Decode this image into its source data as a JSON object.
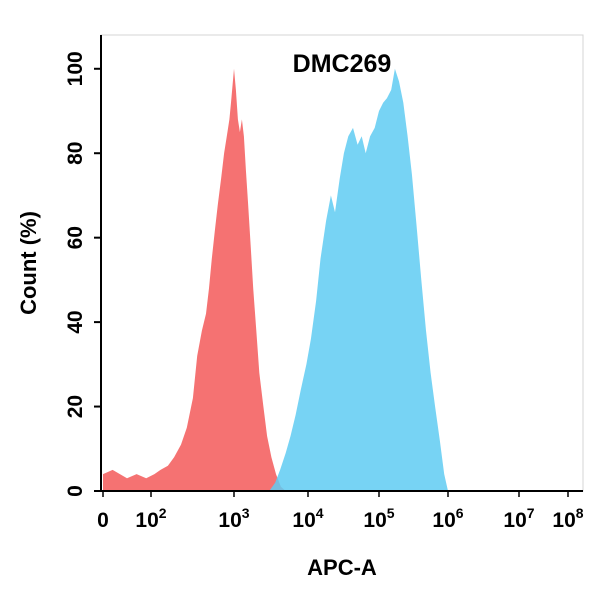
{
  "chart_data": {
    "type": "area",
    "title": "DMC269",
    "xlabel": "APC-A",
    "ylabel": "Count  (%)",
    "x_scale": "biexponential",
    "xlim": [
      0,
      100000000
    ],
    "ylim": [
      0,
      108
    ],
    "x_ticks": [
      {
        "value": 0,
        "base": "0",
        "exp": ""
      },
      {
        "value": 100,
        "base": "10",
        "exp": "2"
      },
      {
        "value": 1000,
        "base": "10",
        "exp": "3"
      },
      {
        "value": 10000,
        "base": "10",
        "exp": "4"
      },
      {
        "value": 100000,
        "base": "10",
        "exp": "5"
      },
      {
        "value": 1000000,
        "base": "10",
        "exp": "6"
      },
      {
        "value": 10000000,
        "base": "10",
        "exp": "7"
      },
      {
        "value": 100000000,
        "base": "10",
        "exp": "8"
      }
    ],
    "y_ticks": [
      0,
      20,
      40,
      60,
      80,
      100
    ],
    "grid": false,
    "series": [
      {
        "color": "#f46a6a",
        "points": [
          [
            0,
            4
          ],
          [
            20,
            5
          ],
          [
            50,
            3
          ],
          [
            70,
            4
          ],
          [
            90,
            3
          ],
          [
            110,
            4
          ],
          [
            130,
            5
          ],
          [
            160,
            6
          ],
          [
            190,
            8
          ],
          [
            230,
            11
          ],
          [
            270,
            15
          ],
          [
            320,
            22
          ],
          [
            360,
            32
          ],
          [
            410,
            38
          ],
          [
            460,
            42
          ],
          [
            500,
            48
          ],
          [
            540,
            55
          ],
          [
            590,
            62
          ],
          [
            640,
            68
          ],
          [
            700,
            74
          ],
          [
            760,
            80
          ],
          [
            820,
            84
          ],
          [
            880,
            88
          ],
          [
            920,
            92
          ],
          [
            960,
            96
          ],
          [
            1000,
            100
          ],
          [
            1060,
            95
          ],
          [
            1130,
            88
          ],
          [
            1200,
            85
          ],
          [
            1280,
            88
          ],
          [
            1360,
            84
          ],
          [
            1450,
            76
          ],
          [
            1550,
            68
          ],
          [
            1680,
            58
          ],
          [
            1820,
            48
          ],
          [
            2000,
            38
          ],
          [
            2200,
            28
          ],
          [
            2500,
            20
          ],
          [
            2800,
            13
          ],
          [
            3200,
            8
          ],
          [
            3700,
            4
          ],
          [
            4300,
            1
          ],
          [
            5000,
            0
          ]
        ]
      },
      {
        "color": "#5fcbf2",
        "points": [
          [
            3000,
            0
          ],
          [
            3600,
            2
          ],
          [
            4200,
            5
          ],
          [
            5000,
            9
          ],
          [
            5800,
            13
          ],
          [
            6800,
            18
          ],
          [
            8000,
            24
          ],
          [
            9500,
            30
          ],
          [
            11000,
            36
          ],
          [
            13000,
            45
          ],
          [
            15000,
            55
          ],
          [
            18000,
            64
          ],
          [
            21000,
            70
          ],
          [
            24000,
            66
          ],
          [
            28000,
            74
          ],
          [
            32000,
            80
          ],
          [
            37000,
            84
          ],
          [
            43000,
            86
          ],
          [
            50000,
            82
          ],
          [
            57000,
            84
          ],
          [
            65000,
            80
          ],
          [
            75000,
            84
          ],
          [
            87000,
            86
          ],
          [
            100000,
            90
          ],
          [
            115000,
            92
          ],
          [
            130000,
            93
          ],
          [
            150000,
            95
          ],
          [
            170000,
            100
          ],
          [
            195000,
            97
          ],
          [
            225000,
            92
          ],
          [
            260000,
            84
          ],
          [
            300000,
            75
          ],
          [
            350000,
            63
          ],
          [
            410000,
            50
          ],
          [
            480000,
            38
          ],
          [
            560000,
            28
          ],
          [
            650000,
            20
          ],
          [
            760000,
            12
          ],
          [
            880000,
            4
          ],
          [
            1000000,
            0
          ]
        ]
      }
    ]
  }
}
